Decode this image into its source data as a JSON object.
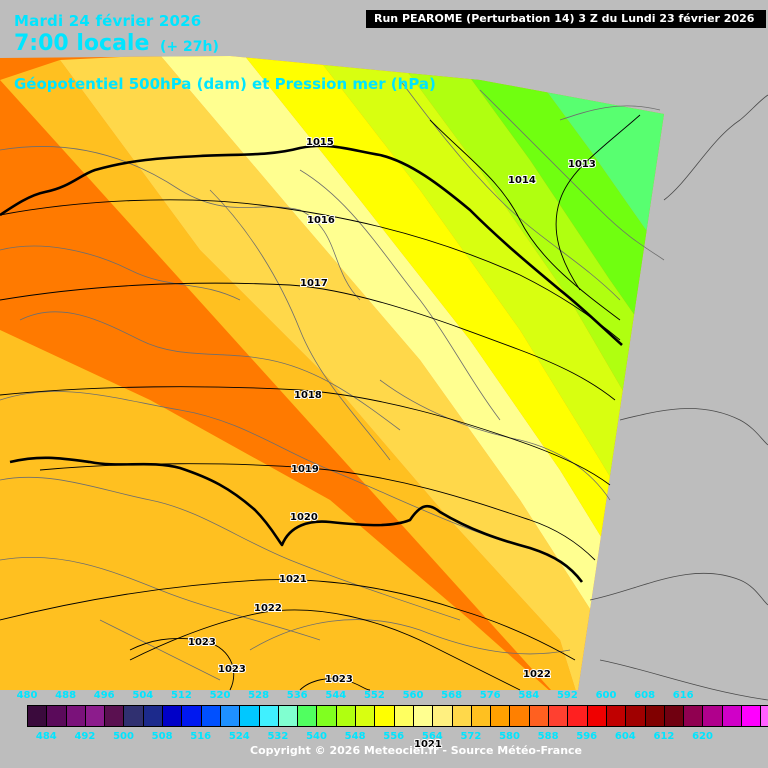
{
  "header": {
    "date": "Mardi 24 février 2026",
    "time": "7:00 locale",
    "lead": "(+ 27h)",
    "parameter": "Géopotentiel 500hPa (dam) et Pression mer (hPa)",
    "run": "Run PEAROME (Perturbation 14) 3 Z du Lundi 23 février 2026"
  },
  "isobar_labels": [
    "1015",
    "1014",
    "1013",
    "1016",
    "1017",
    "1018",
    "1019",
    "1020",
    "1021",
    "1022",
    "1023",
    "1023",
    "1023",
    "1022",
    "1021"
  ],
  "legend": {
    "top_ticks": [
      "480",
      "488",
      "496",
      "504",
      "512",
      "520",
      "528",
      "536",
      "544",
      "552",
      "560",
      "568",
      "576",
      "584",
      "592",
      "600",
      "608",
      "616"
    ],
    "bottom_ticks": [
      "484",
      "492",
      "500",
      "508",
      "516",
      "524",
      "532",
      "540",
      "548",
      "556",
      "564",
      "572",
      "580",
      "588",
      "596",
      "604",
      "612",
      "620"
    ],
    "colors": [
      "#3a0a3c",
      "#5a0a5a",
      "#7a127a",
      "#8c1c8c",
      "#5a1050",
      "#303070",
      "#1c2a8c",
      "#0000c8",
      "#0018f0",
      "#0050ff",
      "#1e90ff",
      "#00c8ff",
      "#40f0ff",
      "#80ffd0",
      "#50ff60",
      "#80ff20",
      "#b0ff10",
      "#d8ff10",
      "#ffff00",
      "#ffff60",
      "#ffff90",
      "#fff080",
      "#ffd84a",
      "#ffc020",
      "#ffa000",
      "#ff8000",
      "#ff6020",
      "#ff4030",
      "#ff2020",
      "#f00000",
      "#c00000",
      "#a00000",
      "#800000",
      "#700010",
      "#900050",
      "#b0008c",
      "#d000c8",
      "#ff00ff",
      "#ff60ff",
      "#ff90ff"
    ]
  },
  "copyright": "Copyright © 2026 Meteociel.fr - Source Météo-France"
}
